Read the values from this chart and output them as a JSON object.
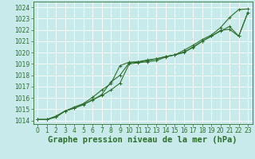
{
  "title": "Graphe pression niveau de la mer (hPa)",
  "bg_color": "#c8eaea",
  "grid_color": "#b0d0d0",
  "line_color": "#2d6e2d",
  "spine_color": "#2d6e2d",
  "xlim": [
    -0.5,
    23.5
  ],
  "ylim": [
    1013.7,
    1024.5
  ],
  "yticks": [
    1014,
    1015,
    1016,
    1017,
    1018,
    1019,
    1020,
    1021,
    1022,
    1023,
    1024
  ],
  "xticks": [
    0,
    1,
    2,
    3,
    4,
    5,
    6,
    7,
    8,
    9,
    10,
    11,
    12,
    13,
    14,
    15,
    16,
    17,
    18,
    19,
    20,
    21,
    22,
    23
  ],
  "line1_x": [
    0,
    1,
    2,
    3,
    4,
    5,
    6,
    7,
    8,
    9,
    10,
    11,
    12,
    13,
    14,
    15,
    16,
    17,
    18,
    19,
    20,
    21,
    22,
    23
  ],
  "line1_y": [
    1014.1,
    1014.1,
    1014.4,
    1014.85,
    1015.2,
    1015.5,
    1016.05,
    1016.7,
    1017.25,
    1018.85,
    1019.15,
    1019.2,
    1019.35,
    1019.45,
    1019.65,
    1019.8,
    1020.2,
    1020.65,
    1021.15,
    1021.55,
    1022.2,
    1023.1,
    1023.8,
    1023.85
  ],
  "line2_x": [
    0,
    1,
    2,
    3,
    4,
    5,
    6,
    7,
    8,
    9,
    10,
    11,
    12,
    13,
    14,
    15,
    16,
    17,
    18,
    19,
    20,
    21,
    22,
    23
  ],
  "line2_y": [
    1014.1,
    1014.1,
    1014.35,
    1014.85,
    1015.1,
    1015.45,
    1015.8,
    1016.3,
    1017.4,
    1018.0,
    1019.1,
    1019.15,
    1019.3,
    1019.45,
    1019.65,
    1019.8,
    1020.0,
    1020.5,
    1021.0,
    1021.45,
    1021.95,
    1022.05,
    1021.45,
    1023.55
  ],
  "line3_x": [
    0,
    1,
    2,
    3,
    4,
    5,
    6,
    7,
    8,
    9,
    10,
    11,
    12,
    13,
    14,
    15,
    16,
    17,
    18,
    19,
    20,
    21,
    22,
    23
  ],
  "line3_y": [
    1014.1,
    1014.1,
    1014.3,
    1014.85,
    1015.1,
    1015.4,
    1015.85,
    1016.2,
    1016.7,
    1017.3,
    1019.0,
    1019.1,
    1019.2,
    1019.3,
    1019.6,
    1019.8,
    1020.05,
    1020.45,
    1021.0,
    1021.45,
    1021.9,
    1022.3,
    1021.45,
    1023.55
  ],
  "tick_fontsize": 5.5,
  "xlabel_fontsize": 7.5,
  "marker_size": 2.0,
  "line_width": 0.8
}
